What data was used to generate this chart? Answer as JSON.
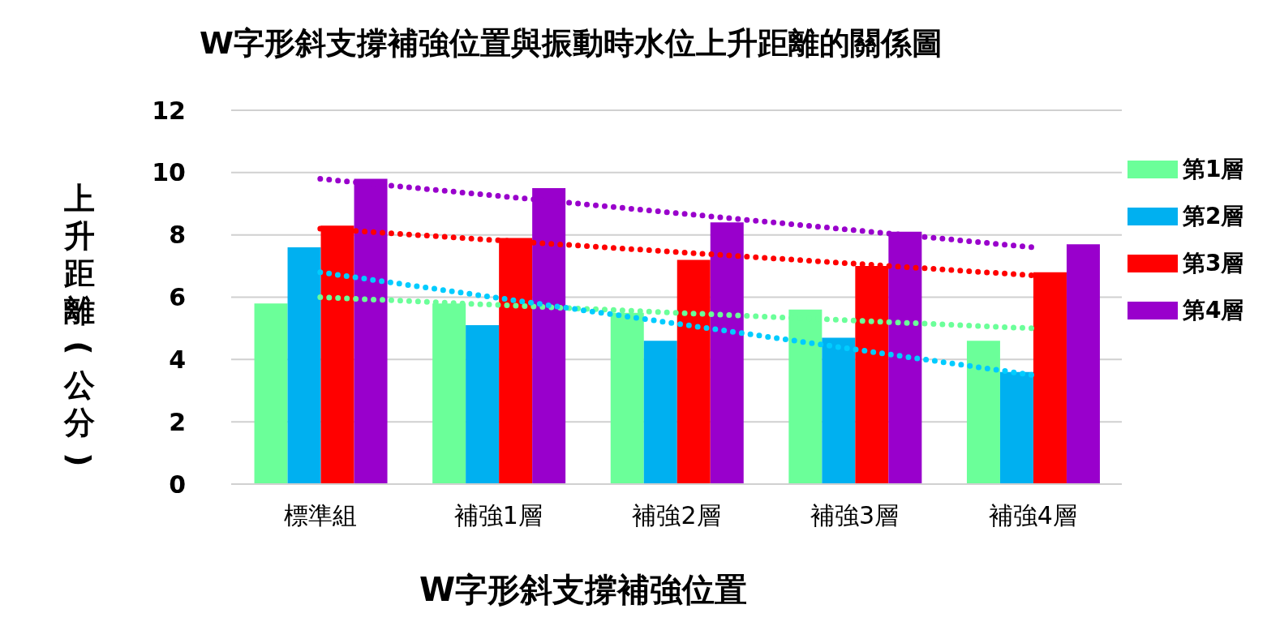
{
  "chart_data": {
    "type": "bar",
    "title": "W字形斜支撐補強位置與振動時水位上升距離的關係圖",
    "xlabel": "W字形斜支撐補強位置",
    "ylabel": "上升距離(公分)",
    "categories": [
      "標準組",
      "補強1層",
      "補強2層",
      "補強3層",
      "補強4層"
    ],
    "series": [
      {
        "name": "第1層",
        "color": "#6bff99",
        "values": [
          5.8,
          5.8,
          5.5,
          5.6,
          4.6
        ]
      },
      {
        "name": "第2層",
        "color": "#00b0f0",
        "values": [
          7.6,
          5.1,
          4.6,
          4.7,
          3.6
        ]
      },
      {
        "name": "第3層",
        "color": "#ff0000",
        "values": [
          8.3,
          7.9,
          7.2,
          7.0,
          6.8
        ]
      },
      {
        "name": "第4層",
        "color": "#9900cc",
        "values": [
          9.8,
          9.5,
          8.4,
          8.1,
          7.7
        ]
      },
      {
        "type": "line",
        "color": "#6bff99",
        "line_style": "dotted",
        "x": [
          "標準組",
          "補強4層"
        ],
        "values": [
          6.0,
          5.0
        ]
      },
      {
        "type": "line",
        "color": "#00ccff",
        "line_style": "dotted",
        "x": [
          "標準組",
          "補強4層"
        ],
        "values": [
          6.8,
          3.5
        ]
      },
      {
        "type": "line",
        "color": "#ff0000",
        "line_style": "dotted",
        "x": [
          "標準組",
          "補強4層"
        ],
        "values": [
          8.2,
          6.7
        ]
      },
      {
        "type": "line",
        "color": "#9900cc",
        "line_style": "dotted",
        "x": [
          "標準組",
          "補強4層"
        ],
        "values": [
          9.8,
          7.6
        ]
      }
    ],
    "ylim": [
      0,
      12
    ],
    "yticks": [
      0,
      2,
      4,
      6,
      8,
      10,
      12
    ],
    "grid": "y",
    "legend": "right"
  }
}
